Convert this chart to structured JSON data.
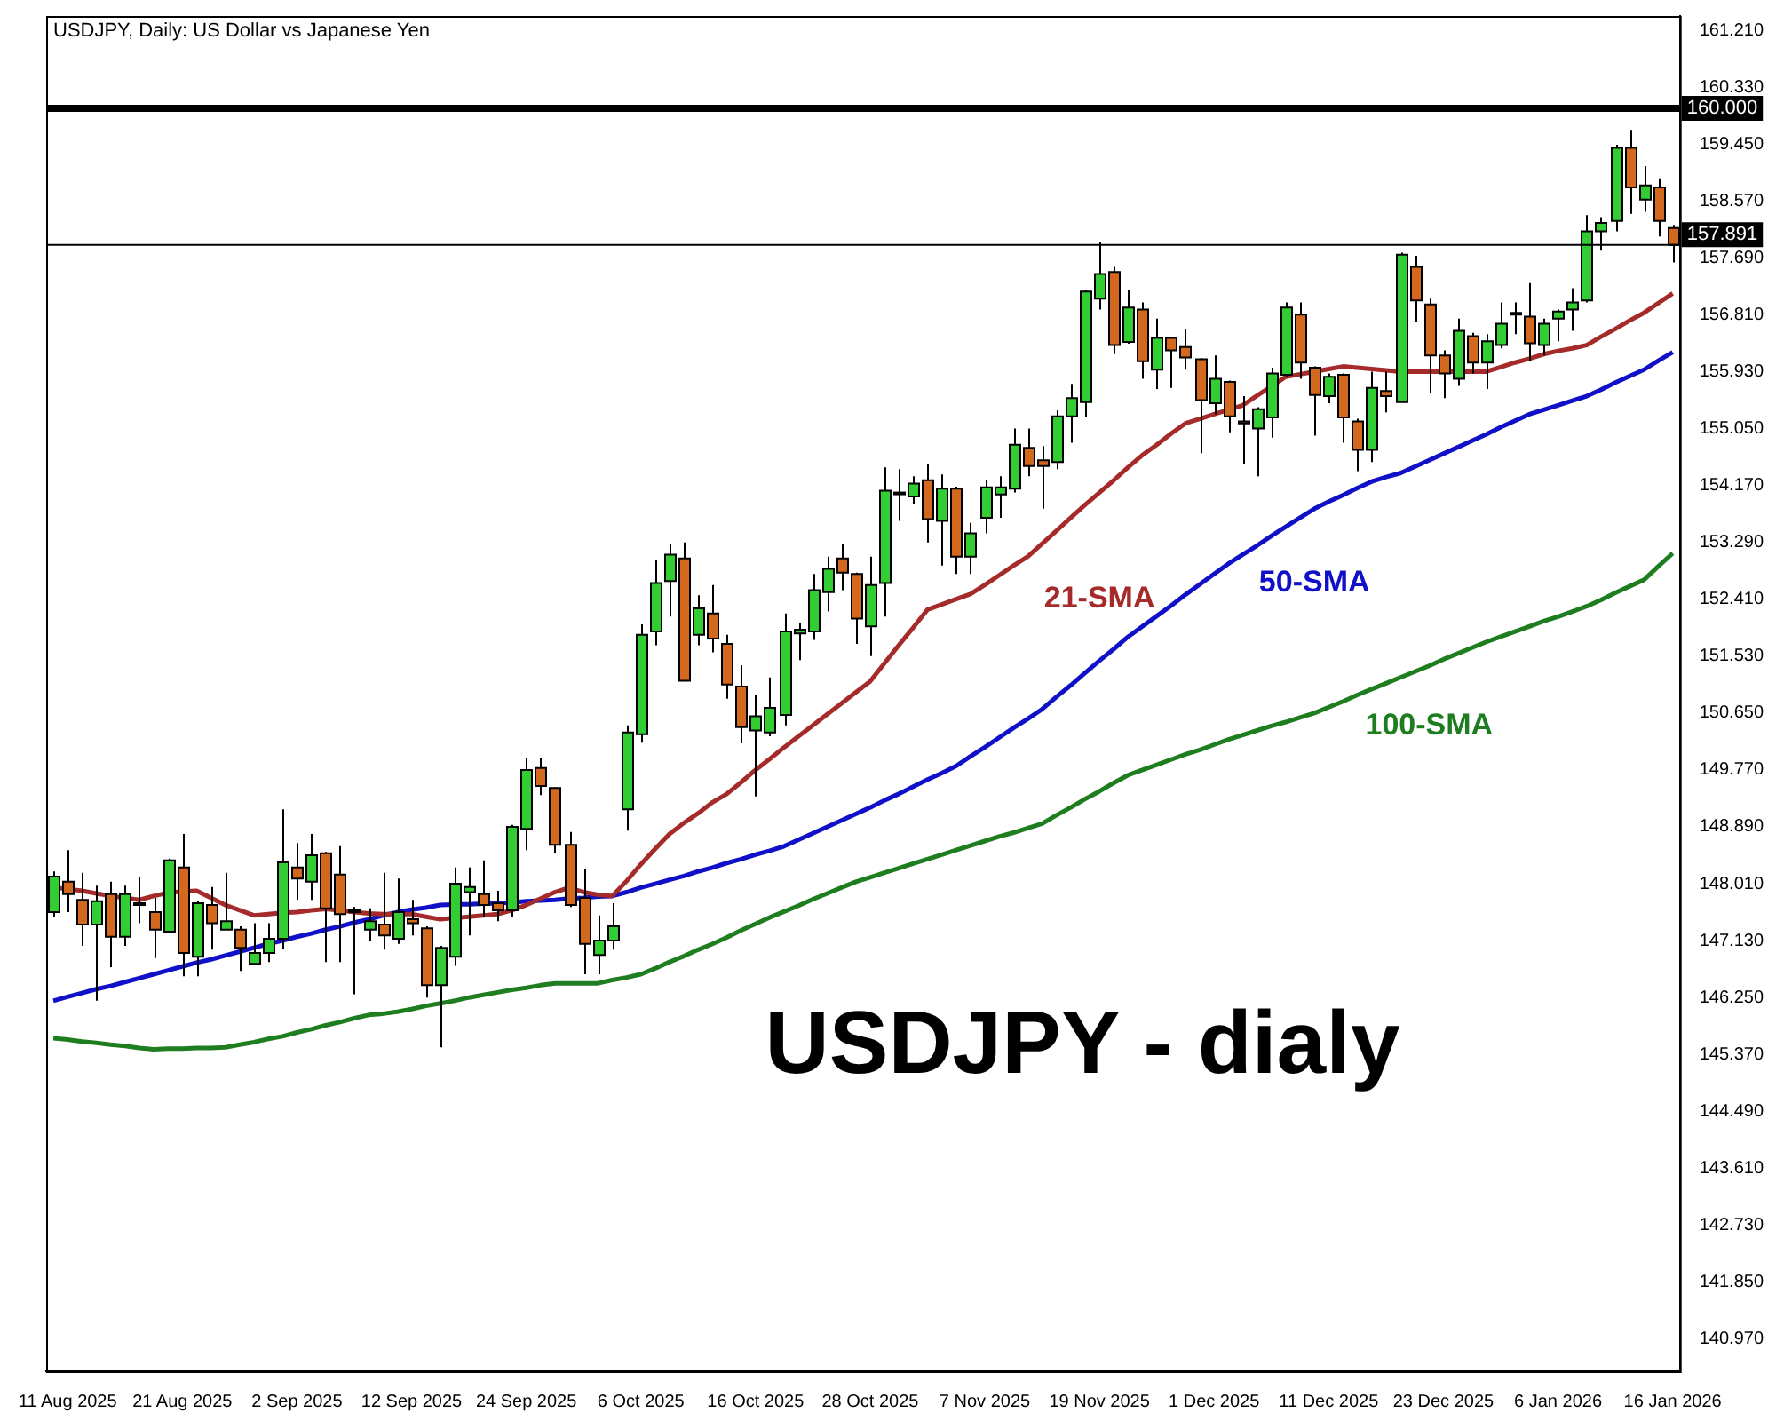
{
  "chart_data": {
    "type": "candlestick",
    "title": "USDJPY, Daily: US Dollar vs Japanese Yen",
    "categories": [
      null,
      "11 Aug 2025",
      null,
      null,
      null,
      null,
      null,
      null,
      null,
      "21 Aug 2025",
      null,
      null,
      null,
      null,
      null,
      null,
      null,
      "2 Sep 2025",
      null,
      null,
      null,
      null,
      null,
      null,
      null,
      "12 Sep 2025",
      null,
      null,
      null,
      null,
      null,
      null,
      null,
      "24 Sep 2025",
      null,
      null,
      null,
      null,
      null,
      null,
      null,
      "6 Oct 2025",
      null,
      null,
      null,
      null,
      null,
      null,
      null,
      "16 Oct 2025",
      null,
      null,
      null,
      null,
      null,
      null,
      null,
      "28 Oct 2025",
      null,
      null,
      null,
      null,
      null,
      null,
      null,
      "7 Nov 2025",
      null,
      null,
      null,
      null,
      null,
      null,
      null,
      "19 Nov 2025",
      null,
      null,
      null,
      null,
      null,
      null,
      null,
      "1 Dec 2025",
      null,
      null,
      null,
      null,
      null,
      null,
      null,
      "11 Dec 2025",
      null,
      null,
      null,
      null,
      null,
      null,
      null,
      "23 Dec 2025",
      null,
      null,
      null,
      null,
      null,
      null,
      null,
      "6 Jan 2026",
      null,
      null,
      null,
      null,
      null,
      null,
      null,
      "16 Jan 2026"
    ],
    "ohlc": [
      [
        147.57,
        148.2,
        147.5,
        148.12
      ],
      [
        148.04,
        148.53,
        147.57,
        147.85
      ],
      [
        147.76,
        148.18,
        147.05,
        147.38
      ],
      [
        147.38,
        147.98,
        146.2,
        147.74
      ],
      [
        147.85,
        148.04,
        146.72,
        147.19
      ],
      [
        147.19,
        147.98,
        147.05,
        147.85
      ],
      [
        147.71,
        148.12,
        147.4,
        147.68
      ],
      [
        147.57,
        147.79,
        146.86,
        147.3
      ],
      [
        147.27,
        148.4,
        147.24,
        148.37
      ],
      [
        148.26,
        148.78,
        146.58,
        146.94
      ],
      [
        146.88,
        147.75,
        146.58,
        147.71
      ],
      [
        147.68,
        147.96,
        146.99,
        147.4
      ],
      [
        147.3,
        148.18,
        147.3,
        147.43
      ],
      [
        147.3,
        147.35,
        146.66,
        147.02
      ],
      [
        146.77,
        147.4,
        146.77,
        146.94
      ],
      [
        146.94,
        147.4,
        146.8,
        147.16
      ],
      [
        147.16,
        149.16,
        147.0,
        148.34
      ],
      [
        148.26,
        148.64,
        147.76,
        148.09
      ],
      [
        148.04,
        148.78,
        147.76,
        148.45
      ],
      [
        148.48,
        148.5,
        146.8,
        147.63
      ],
      [
        148.15,
        148.59,
        146.8,
        147.54
      ],
      [
        147.6,
        147.65,
        146.3,
        147.57
      ],
      [
        147.3,
        147.63,
        147.13,
        147.43
      ],
      [
        147.38,
        148.18,
        146.99,
        147.21
      ],
      [
        147.16,
        148.09,
        147.08,
        147.57
      ],
      [
        147.46,
        147.76,
        147.21,
        147.4
      ],
      [
        147.32,
        147.35,
        146.25,
        146.44
      ],
      [
        146.44,
        147.05,
        145.48,
        147.02
      ],
      [
        146.88,
        148.26,
        146.74,
        148.01
      ],
      [
        147.88,
        148.26,
        147.21,
        147.96
      ],
      [
        147.85,
        148.37,
        147.49,
        147.68
      ],
      [
        147.71,
        147.9,
        147.43,
        147.6
      ],
      [
        147.6,
        148.92,
        147.49,
        148.89
      ],
      [
        148.86,
        149.96,
        148.53,
        149.77
      ],
      [
        149.8,
        149.96,
        149.38,
        149.52
      ],
      [
        149.49,
        149.5,
        148.48,
        148.61
      ],
      [
        148.61,
        148.81,
        147.65,
        147.68
      ],
      [
        147.79,
        148.23,
        146.61,
        147.08
      ],
      [
        146.91,
        147.52,
        146.61,
        147.13
      ],
      [
        147.13,
        147.71,
        146.99,
        147.35
      ],
      [
        149.16,
        150.46,
        148.83,
        150.35
      ],
      [
        150.32,
        152.02,
        150.19,
        151.86
      ],
      [
        151.91,
        153.02,
        151.7,
        152.66
      ],
      [
        152.69,
        153.26,
        152.14,
        153.1
      ],
      [
        153.04,
        153.29,
        151.15,
        151.15
      ],
      [
        151.86,
        152.47,
        151.7,
        152.27
      ],
      [
        152.19,
        152.63,
        151.59,
        151.8
      ],
      [
        151.72,
        151.86,
        150.87,
        151.09
      ],
      [
        151.06,
        151.39,
        150.18,
        150.43
      ],
      [
        150.38,
        150.93,
        149.36,
        150.6
      ],
      [
        150.35,
        151.2,
        150.29,
        150.73
      ],
      [
        150.62,
        152.19,
        150.46,
        151.91
      ],
      [
        151.88,
        152.05,
        151.47,
        151.94
      ],
      [
        151.91,
        152.8,
        151.78,
        152.55
      ],
      [
        152.52,
        153.07,
        152.22,
        152.88
      ],
      [
        153.04,
        153.26,
        152.55,
        152.82
      ],
      [
        152.8,
        152.82,
        151.72,
        152.11
      ],
      [
        151.99,
        153.07,
        151.53,
        152.63
      ],
      [
        152.66,
        154.45,
        152.14,
        154.09
      ],
      [
        154.04,
        154.42,
        153.62,
        154.06
      ],
      [
        154.0,
        154.31,
        153.89,
        154.2
      ],
      [
        154.25,
        154.5,
        153.29,
        153.65
      ],
      [
        153.62,
        154.34,
        152.93,
        154.12
      ],
      [
        154.12,
        154.15,
        152.8,
        153.07
      ],
      [
        153.07,
        153.59,
        152.8,
        153.43
      ],
      [
        153.67,
        154.25,
        153.43,
        154.14
      ],
      [
        154.03,
        154.31,
        153.67,
        154.14
      ],
      [
        154.12,
        155.05,
        154.06,
        154.8
      ],
      [
        154.75,
        155.05,
        154.31,
        154.47
      ],
      [
        154.56,
        154.78,
        153.81,
        154.47
      ],
      [
        154.53,
        155.33,
        154.42,
        155.24
      ],
      [
        155.24,
        155.74,
        154.83,
        155.52
      ],
      [
        155.46,
        157.2,
        155.22,
        157.17
      ],
      [
        157.06,
        157.94,
        156.89,
        157.44
      ],
      [
        157.47,
        157.55,
        156.2,
        156.34
      ],
      [
        156.39,
        157.19,
        156.36,
        156.92
      ],
      [
        156.89,
        157.0,
        155.82,
        156.09
      ],
      [
        155.96,
        156.75,
        155.66,
        156.45
      ],
      [
        156.45,
        156.47,
        155.68,
        156.26
      ],
      [
        156.31,
        156.59,
        155.96,
        156.15
      ],
      [
        156.12,
        156.14,
        154.67,
        155.49
      ],
      [
        155.44,
        156.18,
        155.27,
        155.82
      ],
      [
        155.77,
        155.79,
        154.99,
        155.24
      ],
      [
        155.16,
        155.55,
        154.5,
        155.13
      ],
      [
        155.05,
        155.38,
        154.31,
        155.35
      ],
      [
        155.22,
        155.99,
        154.91,
        155.9
      ],
      [
        155.88,
        157.0,
        155.85,
        156.92
      ],
      [
        156.81,
        157.0,
        155.82,
        156.07
      ],
      [
        155.99,
        156.01,
        154.94,
        155.57
      ],
      [
        155.55,
        155.9,
        155.44,
        155.85
      ],
      [
        155.88,
        155.9,
        154.83,
        155.22
      ],
      [
        155.16,
        155.2,
        154.39,
        154.72
      ],
      [
        154.72,
        155.93,
        154.53,
        155.68
      ],
      [
        155.63,
        155.93,
        155.3,
        155.55
      ],
      [
        155.46,
        157.77,
        155.46,
        157.74
      ],
      [
        157.55,
        157.72,
        156.7,
        157.03
      ],
      [
        156.97,
        157.06,
        155.6,
        156.18
      ],
      [
        156.18,
        156.26,
        155.52,
        155.9
      ],
      [
        155.82,
        156.75,
        155.71,
        156.56
      ],
      [
        156.48,
        156.53,
        155.9,
        156.07
      ],
      [
        156.07,
        156.51,
        155.66,
        156.4
      ],
      [
        156.34,
        157.0,
        156.29,
        156.67
      ],
      [
        156.84,
        157.0,
        156.51,
        156.81
      ],
      [
        156.78,
        157.3,
        156.1,
        156.37
      ],
      [
        156.34,
        156.75,
        156.18,
        156.67
      ],
      [
        156.75,
        156.89,
        156.4,
        156.86
      ],
      [
        156.89,
        157.22,
        156.56,
        157.0
      ],
      [
        157.03,
        158.35,
        157.0,
        158.1
      ],
      [
        158.1,
        158.32,
        157.8,
        158.23
      ],
      [
        158.26,
        159.44,
        158.1,
        159.39
      ],
      [
        159.39,
        159.67,
        158.37,
        158.78
      ],
      [
        158.59,
        159.11,
        158.4,
        158.81
      ],
      [
        158.78,
        158.92,
        158.02,
        158.26
      ],
      [
        158.15,
        158.2,
        157.62,
        157.89
      ]
    ],
    "colors": [
      "#32cd32",
      "#d2691e",
      "#d2691e",
      "#32cd32",
      "#d2691e",
      "#32cd32",
      "#d2691e",
      "#d2691e",
      "#32cd32",
      "#d2691e",
      "#32cd32",
      "#d2691e",
      "#32cd32",
      "#d2691e",
      "#32cd32",
      "#32cd32",
      "#32cd32",
      "#d2691e",
      "#32cd32",
      "#d2691e",
      "#d2691e",
      "#d2691e",
      "#32cd32",
      "#d2691e",
      "#32cd32",
      "#d2691e",
      "#d2691e",
      "#32cd32",
      "#32cd32",
      "#32cd32",
      "#d2691e",
      "#d2691e",
      "#32cd32",
      "#32cd32",
      "#d2691e",
      "#d2691e",
      "#d2691e",
      "#d2691e",
      "#32cd32",
      "#32cd32",
      "#32cd32",
      "#32cd32",
      "#32cd32",
      "#32cd32",
      "#d2691e",
      "#32cd32",
      "#d2691e",
      "#d2691e",
      "#d2691e",
      "#32cd32",
      "#32cd32",
      "#32cd32",
      "#32cd32",
      "#32cd32",
      "#32cd32",
      "#d2691e",
      "#d2691e",
      "#32cd32",
      "#32cd32",
      "#32cd32",
      "#32cd32",
      "#d2691e",
      "#32cd32",
      "#d2691e",
      "#32cd32",
      "#32cd32",
      "#32cd32",
      "#32cd32",
      "#d2691e",
      "#d2691e",
      "#32cd32",
      "#32cd32",
      "#32cd32",
      "#32cd32",
      "#d2691e",
      "#32cd32",
      "#d2691e",
      "#32cd32",
      "#d2691e",
      "#d2691e",
      "#d2691e",
      "#32cd32",
      "#d2691e",
      "#d2691e",
      "#32cd32",
      "#32cd32",
      "#32cd32",
      "#d2691e",
      "#d2691e",
      "#32cd32",
      "#d2691e",
      "#d2691e",
      "#32cd32",
      "#d2691e",
      "#32cd32",
      "#d2691e",
      "#d2691e",
      "#d2691e",
      "#32cd32",
      "#d2691e",
      "#32cd32",
      "#32cd32",
      "#d2691e",
      "#d2691e",
      "#32cd32",
      "#32cd32",
      "#32cd32",
      "#32cd32",
      "#32cd32",
      "#32cd32",
      "#d2691e",
      "#32cd32",
      "#d2691e",
      "#d2691e"
    ],
    "series": [
      {
        "name": "21-SMA",
        "type": "line",
        "color": "#a52a2a",
        "values": [
          147.95,
          147.93,
          147.9,
          147.86,
          147.82,
          147.79,
          147.76,
          147.82,
          147.87,
          147.89,
          147.9,
          147.79,
          147.68,
          147.6,
          147.52,
          147.54,
          147.56,
          147.57,
          147.6,
          147.62,
          147.6,
          147.57,
          147.55,
          147.54,
          147.54,
          147.54,
          147.5,
          147.46,
          147.48,
          147.5,
          147.52,
          147.54,
          147.6,
          147.68,
          147.78,
          147.88,
          147.95,
          147.88,
          147.84,
          147.82,
          148.05,
          148.31,
          148.55,
          148.78,
          148.95,
          149.1,
          149.27,
          149.4,
          149.58,
          149.77,
          149.94,
          150.12,
          150.29,
          150.46,
          150.63,
          150.8,
          150.97,
          151.14,
          151.42,
          151.7,
          151.97,
          152.25,
          152.33,
          152.41,
          152.49,
          152.63,
          152.78,
          152.93,
          153.07,
          153.27,
          153.47,
          153.67,
          153.87,
          154.06,
          154.25,
          154.45,
          154.64,
          154.8,
          154.97,
          155.13,
          155.2,
          155.27,
          155.34,
          155.41,
          155.56,
          155.7,
          155.85,
          155.89,
          155.93,
          155.97,
          156.01,
          155.99,
          155.97,
          155.95,
          155.93,
          155.93,
          155.93,
          155.93,
          155.93,
          155.93,
          155.93,
          156.0,
          156.07,
          156.13,
          156.2,
          156.25,
          156.29,
          156.34,
          156.47,
          156.59,
          156.72,
          156.84,
          156.99,
          157.14
        ]
      },
      {
        "name": "50-SMA",
        "type": "line",
        "color": "#1010c8",
        "values": [
          146.2,
          146.26,
          146.32,
          146.38,
          146.43,
          146.49,
          146.55,
          146.61,
          146.67,
          146.73,
          146.79,
          146.84,
          146.9,
          146.96,
          147.02,
          147.08,
          147.13,
          147.19,
          147.24,
          147.3,
          147.35,
          147.41,
          147.46,
          147.52,
          147.57,
          147.61,
          147.64,
          147.68,
          147.69,
          147.69,
          147.7,
          147.71,
          147.72,
          147.74,
          147.75,
          147.76,
          147.78,
          147.79,
          147.81,
          147.82,
          147.88,
          147.95,
          148.01,
          148.07,
          148.13,
          148.2,
          148.26,
          148.33,
          148.39,
          148.46,
          148.52,
          148.59,
          148.69,
          148.79,
          148.89,
          148.99,
          149.09,
          149.19,
          149.3,
          149.4,
          149.51,
          149.62,
          149.72,
          149.83,
          149.98,
          150.12,
          150.27,
          150.42,
          150.56,
          150.71,
          150.9,
          151.08,
          151.27,
          151.46,
          151.64,
          151.83,
          151.99,
          152.15,
          152.31,
          152.48,
          152.64,
          152.8,
          152.96,
          153.1,
          153.24,
          153.39,
          153.53,
          153.67,
          153.81,
          153.92,
          154.02,
          154.13,
          154.23,
          154.3,
          154.36,
          154.46,
          154.56,
          154.66,
          154.76,
          154.86,
          154.96,
          155.07,
          155.17,
          155.27,
          155.34,
          155.41,
          155.48,
          155.55,
          155.65,
          155.76,
          155.86,
          155.96,
          156.1,
          156.23
        ]
      },
      {
        "name": "100-SMA",
        "type": "line",
        "color": "#1e7d1e",
        "values": [
          145.62,
          145.6,
          145.57,
          145.55,
          145.52,
          145.5,
          145.47,
          145.45,
          145.46,
          145.46,
          145.47,
          145.47,
          145.48,
          145.52,
          145.56,
          145.61,
          145.65,
          145.71,
          145.76,
          145.82,
          145.87,
          145.93,
          145.98,
          146.0,
          146.03,
          146.07,
          146.12,
          146.16,
          146.2,
          146.25,
          146.29,
          146.33,
          146.37,
          146.4,
          146.44,
          146.47,
          146.47,
          146.47,
          146.47,
          146.52,
          146.56,
          146.61,
          146.7,
          146.8,
          146.89,
          146.99,
          147.08,
          147.18,
          147.29,
          147.39,
          147.49,
          147.58,
          147.67,
          147.77,
          147.86,
          147.95,
          148.04,
          148.11,
          148.18,
          148.25,
          148.32,
          148.39,
          148.46,
          148.53,
          148.6,
          148.67,
          148.74,
          148.8,
          148.87,
          148.94,
          149.07,
          149.19,
          149.32,
          149.44,
          149.57,
          149.69,
          149.77,
          149.85,
          149.93,
          150.01,
          150.08,
          150.16,
          150.24,
          150.31,
          150.38,
          150.45,
          150.51,
          150.58,
          150.65,
          150.74,
          150.83,
          150.93,
          151.02,
          151.11,
          151.2,
          151.29,
          151.38,
          151.48,
          151.57,
          151.66,
          151.75,
          151.83,
          151.91,
          151.99,
          152.07,
          152.14,
          152.22,
          152.3,
          152.4,
          152.51,
          152.61,
          152.71,
          152.92,
          153.12
        ]
      }
    ],
    "marker": "none",
    "ylim": [
      140.47,
      161.43
    ],
    "yticks": [
      {
        "value": 140.97,
        "label": "140.970"
      },
      {
        "value": 141.85,
        "label": "141.850"
      },
      {
        "value": 142.73,
        "label": "142.730"
      },
      {
        "value": 143.61,
        "label": "143.610"
      },
      {
        "value": 144.49,
        "label": "144.490"
      },
      {
        "value": 145.37,
        "label": "145.370"
      },
      {
        "value": 146.25,
        "label": "146.250"
      },
      {
        "value": 147.13,
        "label": "147.130"
      },
      {
        "value": 148.01,
        "label": "148.010"
      },
      {
        "value": 148.89,
        "label": "148.890"
      },
      {
        "value": 149.77,
        "label": "149.770"
      },
      {
        "value": 150.65,
        "label": "150.650"
      },
      {
        "value": 151.53,
        "label": "151.530"
      },
      {
        "value": 152.41,
        "label": "152.410"
      },
      {
        "value": 153.29,
        "label": "153.290"
      },
      {
        "value": 154.17,
        "label": "154.170"
      },
      {
        "value": 155.05,
        "label": "155.050"
      },
      {
        "value": 155.93,
        "label": "155.930"
      },
      {
        "value": 156.81,
        "label": "156.810"
      },
      {
        "value": 157.69,
        "label": "157.690"
      },
      {
        "value": 158.57,
        "label": "158.570"
      },
      {
        "value": 159.45,
        "label": "159.450"
      },
      {
        "value": 160.33,
        "label": "160.330"
      },
      {
        "value": 161.21,
        "label": "161.210"
      }
    ],
    "ref_lines": [
      {
        "axis": "y",
        "value": 160,
        "label": "160.000",
        "color": "#000000"
      },
      {
        "axis": "y",
        "value": 157.891,
        "label": "157.891",
        "color": "#000000"
      }
    ],
    "annotations": [
      "USDJPY - dialy"
    ]
  }
}
